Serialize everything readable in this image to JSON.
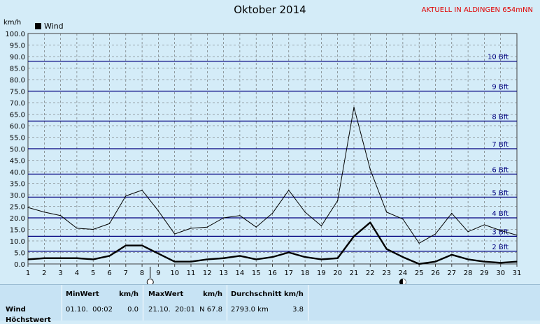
{
  "header": {
    "title": "Oktober 2014",
    "station": "AKTUELL IN ALDINGEN 654mNN",
    "unit": "km/h"
  },
  "colors": {
    "background": "#d4ecf8",
    "beaufort_line": "#00007f",
    "series": "#000000",
    "station_text": "#e00000"
  },
  "chart_data": {
    "type": "line",
    "title": "Oktober 2014",
    "ylabel": "km/h",
    "ylim": [
      0,
      100
    ],
    "yticks": [
      "0.0",
      "5.0",
      "10.0",
      "15.0",
      "20.0",
      "25.0",
      "30.0",
      "35.0",
      "40.0",
      "45.0",
      "50.0",
      "55.0",
      "60.0",
      "65.0",
      "70.0",
      "75.0",
      "80.0",
      "85.0",
      "90.0",
      "95.0",
      "100.0"
    ],
    "x": [
      1,
      2,
      3,
      4,
      5,
      6,
      7,
      8,
      9,
      10,
      11,
      12,
      13,
      14,
      15,
      16,
      17,
      18,
      19,
      20,
      21,
      22,
      23,
      24,
      25,
      26,
      27,
      28,
      29,
      30,
      31
    ],
    "legend": [
      "Wind"
    ],
    "legend_position": "top-left",
    "grid": true,
    "series": [
      {
        "name": "Wind",
        "style": "thick",
        "values": [
          2.0,
          2.5,
          2.5,
          2.5,
          2.0,
          3.5,
          8.0,
          8.0,
          4.5,
          1.0,
          1.0,
          2.0,
          2.5,
          3.5,
          2.0,
          3.0,
          5.0,
          3.0,
          2.0,
          2.5,
          12.0,
          18.0,
          6.5,
          3.0,
          0.0,
          1.0,
          4.0,
          2.0,
          1.0,
          0.5,
          1.0
        ]
      },
      {
        "name": "",
        "style": "thin",
        "values": [
          24.5,
          22.5,
          21.0,
          15.5,
          15.0,
          17.5,
          29.5,
          32.0,
          23.0,
          13.0,
          15.5,
          16.0,
          20.0,
          21.0,
          16.0,
          22.0,
          32.0,
          22.5,
          16.5,
          27.5,
          68.0,
          41.0,
          22.5,
          19.5,
          9.0,
          13.0,
          22.0,
          14.0,
          17.0,
          14.5,
          12.5
        ]
      }
    ],
    "beaufort": [
      {
        "label": "2 Bft",
        "value": 5.5
      },
      {
        "label": "3 Bft",
        "value": 12.0
      },
      {
        "label": "4 Bft",
        "value": 20.0
      },
      {
        "label": "5 Bft",
        "value": 29.0
      },
      {
        "label": "6 Bft",
        "value": 39.0
      },
      {
        "label": "7 Bft",
        "value": 50.0
      },
      {
        "label": "8 Bft",
        "value": 62.0
      },
      {
        "label": "9 Bft",
        "value": 75.0
      },
      {
        "label": "10 Bft",
        "value": 88.0
      }
    ],
    "moon_markers": [
      {
        "day": 8.5,
        "phase": "full-moon-icon"
      },
      {
        "day": 24,
        "phase": "new-moon-icon"
      }
    ]
  },
  "stats": {
    "row_label": "Wind",
    "min": {
      "header": "MinWert",
      "unit": "km/h",
      "datetime": "01.10.  00:02",
      "value": "0.0"
    },
    "max": {
      "header": "MaxWert",
      "unit": "km/h",
      "datetime": "21.10.  20:01",
      "value": "N 67.8"
    },
    "avg": {
      "header": "Durchschnitt km/h",
      "distance": "2793.0 km",
      "value": "3.8"
    },
    "next_row_label": "Höchstwert"
  }
}
